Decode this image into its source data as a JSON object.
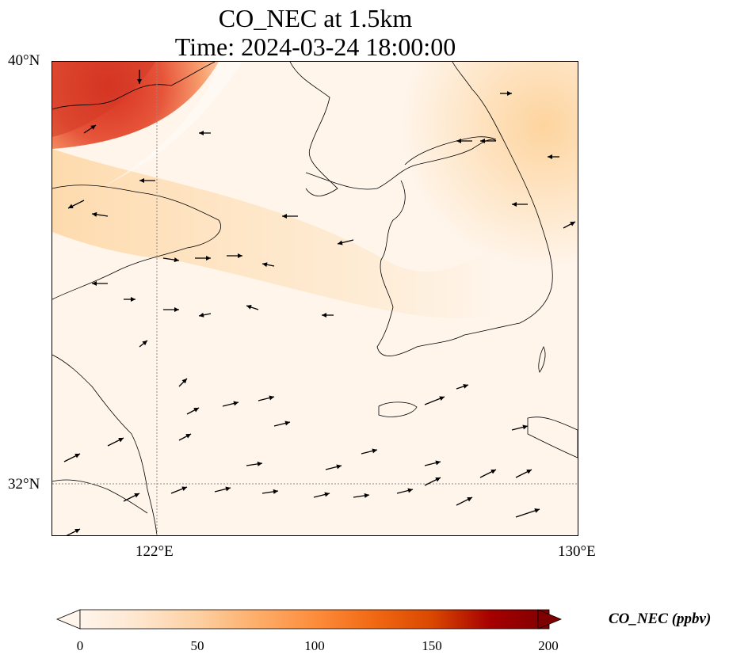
{
  "title": {
    "line1": "CO_NEC at 1.5km",
    "line2": "Time: 2024-03-24 18:00:00"
  },
  "map": {
    "extent": {
      "lon": [
        120.4,
        130
      ],
      "lat": [
        31.2,
        40
      ]
    },
    "gridlines": {
      "lon": [
        122
      ],
      "lat": [
        32
      ],
      "style": "dotted"
    },
    "lat_labels": [
      "40°N",
      "32°N"
    ],
    "lon_labels": [
      "122°E",
      "130°E"
    ],
    "field_colors": {
      "low": "#fff5eb",
      "mid": "#fdd49e",
      "high": "#e6553a",
      "max": "#7f0000"
    }
  },
  "colorbar": {
    "title": "CO_NEC (ppbv)",
    "ticks": [
      "0",
      "50",
      "100",
      "150",
      "200"
    ],
    "range": [
      0,
      200
    ],
    "extend": "both",
    "colormap": [
      "#fff5eb",
      "#fee6ce",
      "#fdd0a2",
      "#fdae6b",
      "#fd8d3c",
      "#f16913",
      "#d94801",
      "#a60000",
      "#7f0000"
    ]
  }
}
